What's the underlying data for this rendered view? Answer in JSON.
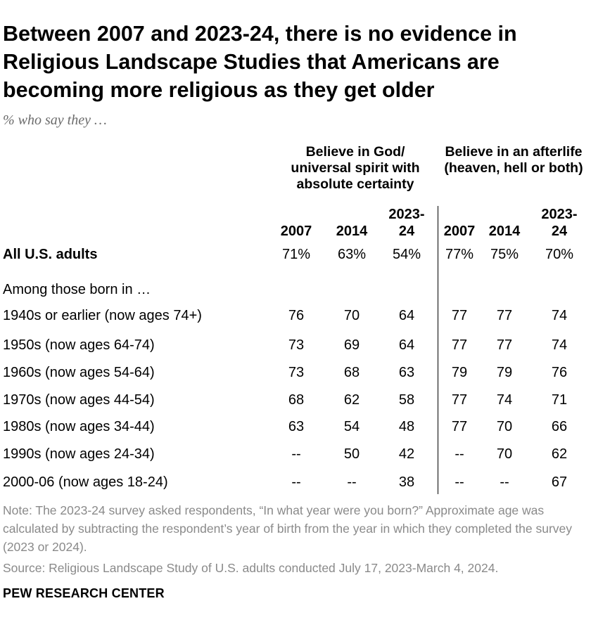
{
  "title": "Between 2007 and 2023-24, there is no evidence in Religious Landscape Studies that Americans are becoming more religious as they get older",
  "subtitle": "% who say they …",
  "groups": [
    {
      "label": "Believe in God/ universal spirit with absolute certainty"
    },
    {
      "label": "Believe in an afterlife (heaven, hell or both)"
    }
  ],
  "columns": [
    "2007",
    "2014",
    "2023-24",
    "2007",
    "2014",
    "2023-24"
  ],
  "subheading": "Among those born in …",
  "chart_data": {
    "type": "table",
    "title": "Between 2007 and 2023-24, there is no evidence in Religious Landscape Studies that Americans are becoming more religious as they get older",
    "column_groups": [
      "Believe in God/ universal spirit with absolute certainty",
      "Believe in an afterlife (heaven, hell or both)"
    ],
    "columns": [
      "2007",
      "2014",
      "2023-24",
      "2007",
      "2014",
      "2023-24"
    ],
    "rows": [
      {
        "label": "All U.S. adults",
        "values": [
          "71%",
          "63%",
          "54%",
          "77%",
          "75%",
          "70%"
        ]
      },
      {
        "label": "1940s or earlier (now ages 74+)",
        "values": [
          "76",
          "70",
          "64",
          "77",
          "77",
          "74"
        ]
      },
      {
        "label": "1950s (now ages 64-74)",
        "values": [
          "73",
          "69",
          "64",
          "77",
          "77",
          "74"
        ]
      },
      {
        "label": "1960s (now ages 54-64)",
        "values": [
          "73",
          "68",
          "63",
          "79",
          "79",
          "76"
        ]
      },
      {
        "label": "1970s (now ages 44-54)",
        "values": [
          "68",
          "62",
          "58",
          "77",
          "74",
          "71"
        ]
      },
      {
        "label": "1980s (now ages 34-44)",
        "values": [
          "63",
          "54",
          "48",
          "77",
          "70",
          "66"
        ]
      },
      {
        "label": "1990s (now ages 24-34)",
        "values": [
          "--",
          "50",
          "42",
          "--",
          "70",
          "62"
        ]
      },
      {
        "label": "2000-06 (now ages 18-24)",
        "values": [
          "--",
          "--",
          "38",
          "--",
          "--",
          "67"
        ]
      }
    ]
  },
  "note": "Note: The 2023-24 survey asked respondents, “In what year were you born?” Approximate age was calculated by subtracting the respondent’s year of birth from the year in which they completed the survey (2023 or 2024).",
  "source": "Source: Religious Landscape Study of U.S. adults conducted July 17, 2023-March 4, 2024.",
  "brand": "PEW RESEARCH CENTER"
}
